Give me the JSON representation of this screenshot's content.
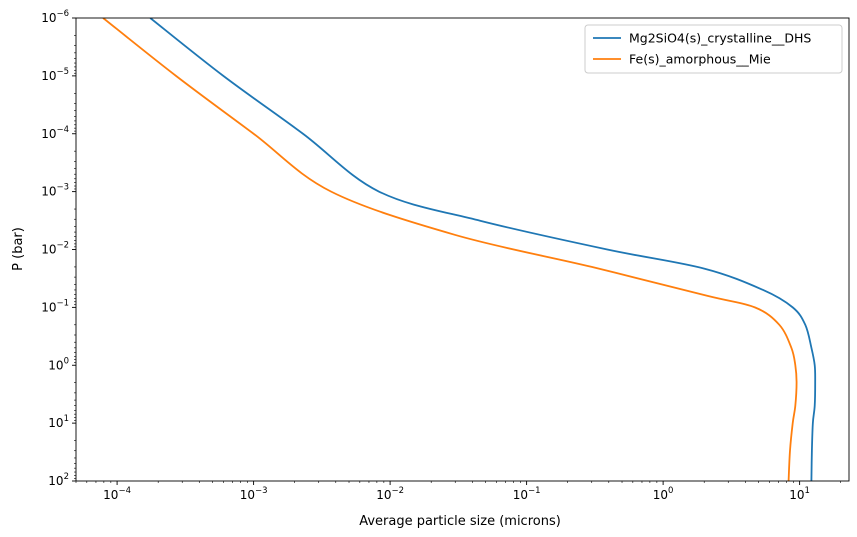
{
  "chart_data": {
    "type": "line",
    "xlabel": "Average particle size (microns)",
    "ylabel": "P (bar)",
    "xscale": "log",
    "yscale": "log",
    "y_inverted": true,
    "xlim": [
      5e-05,
      23
    ],
    "ylim": [
      100,
      1e-06
    ],
    "x_major_ticks": [
      0.0001,
      0.001,
      0.01,
      0.1,
      1,
      10
    ],
    "x_tick_labels": [
      {
        "base": "10",
        "exp": "−4"
      },
      {
        "base": "10",
        "exp": "−3"
      },
      {
        "base": "10",
        "exp": "−2"
      },
      {
        "base": "10",
        "exp": "−1"
      },
      {
        "base": "10",
        "exp": "0"
      },
      {
        "base": "10",
        "exp": "1"
      }
    ],
    "y_major_ticks": [
      1e-06,
      1e-05,
      0.0001,
      0.001,
      0.01,
      0.1,
      1,
      10,
      100
    ],
    "y_tick_labels": [
      {
        "base": "10",
        "exp": "−6"
      },
      {
        "base": "10",
        "exp": "−5"
      },
      {
        "base": "10",
        "exp": "−4"
      },
      {
        "base": "10",
        "exp": "−3"
      },
      {
        "base": "10",
        "exp": "−2"
      },
      {
        "base": "10",
        "exp": "−1"
      },
      {
        "base": "10",
        "exp": "0"
      },
      {
        "base": "10",
        "exp": "1"
      },
      {
        "base": "10",
        "exp": "2"
      }
    ],
    "grid": false,
    "legend_position": "top-right",
    "series": [
      {
        "name": "Mg2SiO4(s)_crystalline__DHS",
        "color": "#1f77b4",
        "points": [
          [
            0.000175,
            1e-06
          ],
          [
            0.0006,
            1e-05
          ],
          [
            0.0023,
            0.0001
          ],
          [
            0.0083,
            0.001
          ],
          [
            0.046,
            0.0032
          ],
          [
            0.39,
            0.01
          ],
          [
            2.0,
            0.0214
          ],
          [
            5.4,
            0.05
          ],
          [
            8.9,
            0.1
          ],
          [
            11.0,
            0.2
          ],
          [
            12.2,
            0.5
          ],
          [
            12.9,
            1
          ],
          [
            13.0,
            2
          ],
          [
            12.9,
            5
          ],
          [
            12.5,
            10
          ],
          [
            12.3,
            30
          ],
          [
            12.2,
            100
          ]
        ]
      },
      {
        "name": "Fe(s)_amorphous__Mie",
        "color": "#ff7f0e",
        "points": [
          [
            7.9e-05,
            1e-06
          ],
          [
            0.00027,
            1e-05
          ],
          [
            0.001,
            0.0001
          ],
          [
            0.0037,
            0.001
          ],
          [
            0.03,
            0.0056
          ],
          [
            0.3,
            0.02
          ],
          [
            2.1,
            0.063
          ],
          [
            4.7,
            0.1
          ],
          [
            7.1,
            0.2
          ],
          [
            8.7,
            0.5
          ],
          [
            9.3,
            1
          ],
          [
            9.5,
            2
          ],
          [
            9.3,
            5
          ],
          [
            8.9,
            10
          ],
          [
            8.5,
            30
          ],
          [
            8.3,
            100
          ]
        ]
      }
    ]
  }
}
